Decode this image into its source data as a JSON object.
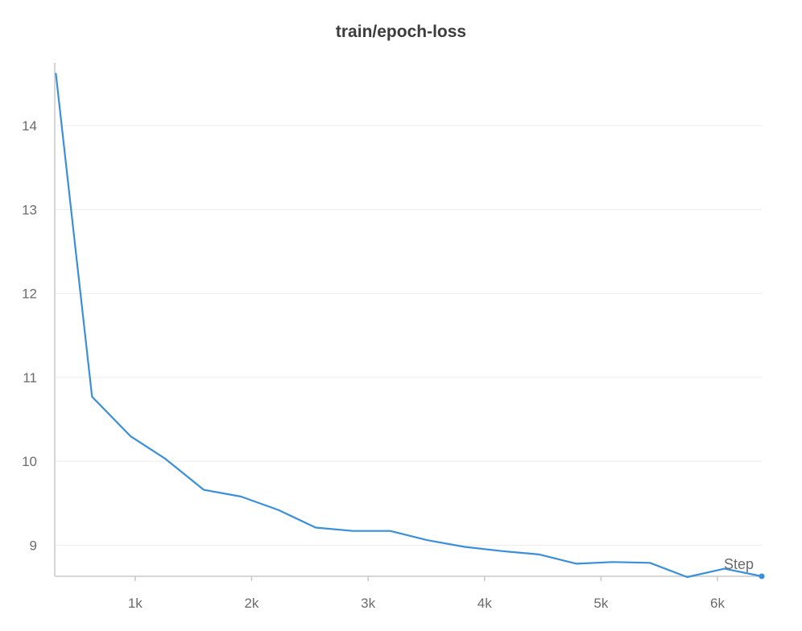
{
  "chart_data": {
    "type": "line",
    "title": "train/epoch-loss",
    "xlabel": "Step",
    "ylabel": "",
    "xlim": [
      310,
      6380
    ],
    "ylim": [
      8.63,
      14.75
    ],
    "grid": true,
    "x_ticks": [
      1000,
      2000,
      3000,
      4000,
      5000,
      6000
    ],
    "x_tick_labels": [
      "1k",
      "2k",
      "3k",
      "4k",
      "5k",
      "6k"
    ],
    "y_ticks": [
      9,
      10,
      11,
      12,
      13,
      14
    ],
    "y_tick_labels": [
      "9",
      "10",
      "11",
      "12",
      "13",
      "14"
    ],
    "series": [
      {
        "color": "#3b8fd9",
        "x": [
          320,
          630,
          960,
          1260,
          1590,
          1910,
          2230,
          2550,
          2870,
          3190,
          3510,
          3830,
          4150,
          4470,
          4790,
          5100,
          5420,
          5740,
          6060,
          6380
        ],
        "y": [
          14.62,
          10.77,
          10.3,
          10.03,
          9.66,
          9.58,
          9.42,
          9.21,
          9.17,
          9.17,
          9.06,
          8.98,
          8.93,
          8.89,
          8.78,
          8.8,
          8.79,
          8.62,
          8.72,
          8.63
        ]
      }
    ]
  }
}
